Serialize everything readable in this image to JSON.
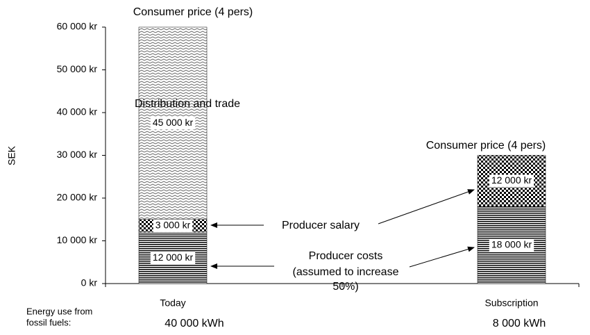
{
  "chart_data": {
    "type": "stacked-bar",
    "y_label": "SEK",
    "categories": [
      "Today",
      "Subscription"
    ],
    "series": [
      {
        "name": "Producer costs",
        "note": [
          "(assumed to increase",
          "50%)"
        ],
        "values": [
          12000,
          18000
        ],
        "value_labels": [
          "12 000 kr",
          "18 000 kr"
        ],
        "pattern": "horizontal-lines"
      },
      {
        "name": "Producer salary",
        "values": [
          3000,
          12000
        ],
        "value_labels": [
          "3 000 kr",
          "12 000 kr"
        ],
        "pattern": "checker"
      },
      {
        "name": "Distribution and trade",
        "values": [
          45000,
          null
        ],
        "value_labels": [
          "45 000 kr",
          null
        ],
        "pattern": "wave"
      }
    ],
    "total_labels": [
      "Consumer price (4 pers)",
      "Consumer price  (4 pers)"
    ],
    "ylim": [
      0,
      60000
    ],
    "yticks": [
      {
        "value": 0,
        "label": "0 kr"
      },
      {
        "value": 10000,
        "label": "10 000 kr"
      },
      {
        "value": 20000,
        "label": "20 000 kr"
      },
      {
        "value": 30000,
        "label": "30 000 kr"
      },
      {
        "value": 40000,
        "label": "40 000 kr"
      },
      {
        "value": 50000,
        "label": "50 000 kr"
      },
      {
        "value": 60000,
        "label": "60 000 kr"
      }
    ],
    "footer": {
      "label": [
        "Energy use from",
        "fossil fuels:"
      ],
      "values": [
        "40 000 kWh",
        "8 000 kWh"
      ]
    }
  }
}
